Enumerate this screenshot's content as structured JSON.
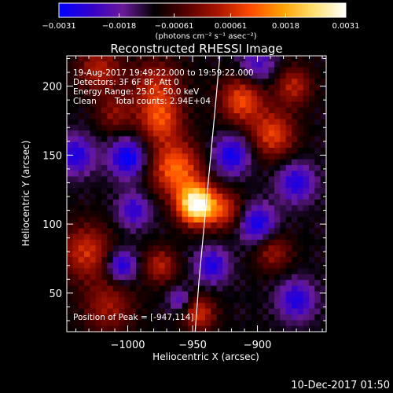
{
  "chart_data": {
    "type": "heatmap",
    "title": "Reconstructed RHESSI Image",
    "xlabel": "Heliocentric X (arcsec)",
    "ylabel": "Heliocentric Y (arcsec)",
    "xlim": [
      -1047,
      -847
    ],
    "ylim": [
      22,
      222
    ],
    "x_ticks": [
      -1000,
      -950,
      -900
    ],
    "x_tick_labels": [
      "−1000",
      "−950",
      "−900"
    ],
    "y_ticks": [
      50,
      100,
      150,
      200
    ],
    "y_tick_labels": [
      "50",
      "100",
      "150",
      "200"
    ],
    "grid": false,
    "colorbar": {
      "position": "top",
      "range": [
        -0.0031,
        0.0031
      ],
      "ticks": [
        -0.0031,
        -0.0018,
        -0.00061,
        0.00061,
        0.0018,
        0.0031
      ],
      "tick_labels": [
        "−0.0031",
        "−0.0018",
        "−0.00061",
        "0.00061",
        "0.0018",
        "0.0031"
      ],
      "units": "(photons cm⁻² s⁻¹ asec⁻²)",
      "colormap": [
        "#0000ff",
        "#3300cc",
        "#6a1a9a",
        "#000000",
        "#550000",
        "#aa1500",
        "#ff4a00",
        "#ffa000",
        "#ffe070",
        "#ffffff"
      ]
    },
    "annotations": {
      "time_range": "19-Aug-2017 19:49:22.000 to 19:59:22.000",
      "detectors": "Detectors: 3F 6F 8F, Att 0",
      "energy_range": "Energy Range: 25.0 - 50.0 keV",
      "method": "Clean",
      "total_counts": "Total counts: 2.94E+04",
      "peak_position": "Position of Peak = [-947,114]"
    },
    "limb_line": {
      "x": [
        -948,
        -945,
        -941,
        -937,
        -933,
        -929
      ],
      "y": [
        22,
        60,
        100,
        140,
        180,
        222
      ]
    },
    "sources": [
      {
        "kind": "positive",
        "x": -947,
        "y": 114,
        "sigma": 10,
        "amplitude": 1.0
      },
      {
        "kind": "positive",
        "x": -963,
        "y": 140,
        "sigma": 14,
        "amplitude": 0.55
      },
      {
        "kind": "positive",
        "x": -975,
        "y": 175,
        "sigma": 12,
        "amplitude": 0.42
      },
      {
        "kind": "positive",
        "x": -978,
        "y": 200,
        "sigma": 14,
        "amplitude": 0.35
      },
      {
        "kind": "positive",
        "x": -1022,
        "y": 212,
        "sigma": 12,
        "amplitude": 0.35
      },
      {
        "kind": "positive",
        "x": -1010,
        "y": 180,
        "sigma": 10,
        "amplitude": 0.25
      },
      {
        "kind": "positive",
        "x": -1032,
        "y": 80,
        "sigma": 14,
        "amplitude": 0.4
      },
      {
        "kind": "positive",
        "x": -1015,
        "y": 40,
        "sigma": 14,
        "amplitude": 0.3
      },
      {
        "kind": "positive",
        "x": -975,
        "y": 70,
        "sigma": 9,
        "amplitude": 0.35
      },
      {
        "kind": "positive",
        "x": -945,
        "y": 35,
        "sigma": 9,
        "amplitude": 0.4
      },
      {
        "kind": "positive",
        "x": -925,
        "y": 110,
        "sigma": 10,
        "amplitude": 0.38
      },
      {
        "kind": "positive",
        "x": -912,
        "y": 190,
        "sigma": 12,
        "amplitude": 0.48
      },
      {
        "kind": "positive",
        "x": -888,
        "y": 165,
        "sigma": 12,
        "amplitude": 0.45
      },
      {
        "kind": "positive",
        "x": -872,
        "y": 200,
        "sigma": 10,
        "amplitude": 0.35
      },
      {
        "kind": "positive",
        "x": -888,
        "y": 80,
        "sigma": 10,
        "amplitude": 0.3
      },
      {
        "kind": "negative",
        "x": -1000,
        "y": 148,
        "sigma": 10,
        "amplitude": 0.5
      },
      {
        "kind": "negative",
        "x": -1005,
        "y": 70,
        "sigma": 8,
        "amplitude": 0.45
      },
      {
        "kind": "negative",
        "x": -1040,
        "y": 150,
        "sigma": 10,
        "amplitude": 0.4
      },
      {
        "kind": "negative",
        "x": -995,
        "y": 110,
        "sigma": 9,
        "amplitude": 0.35
      },
      {
        "kind": "negative",
        "x": -920,
        "y": 150,
        "sigma": 10,
        "amplitude": 0.45
      },
      {
        "kind": "negative",
        "x": -900,
        "y": 100,
        "sigma": 10,
        "amplitude": 0.45
      },
      {
        "kind": "negative",
        "x": -935,
        "y": 70,
        "sigma": 9,
        "amplitude": 0.4
      },
      {
        "kind": "negative",
        "x": -870,
        "y": 130,
        "sigma": 10,
        "amplitude": 0.4
      },
      {
        "kind": "negative",
        "x": -870,
        "y": 45,
        "sigma": 10,
        "amplitude": 0.4
      },
      {
        "kind": "negative",
        "x": -900,
        "y": 215,
        "sigma": 10,
        "amplitude": 0.3
      },
      {
        "kind": "negative",
        "x": -960,
        "y": 45,
        "sigma": 6,
        "amplitude": 0.3
      }
    ]
  },
  "footer": {
    "timestamp": "10-Dec-2017 01:50"
  }
}
